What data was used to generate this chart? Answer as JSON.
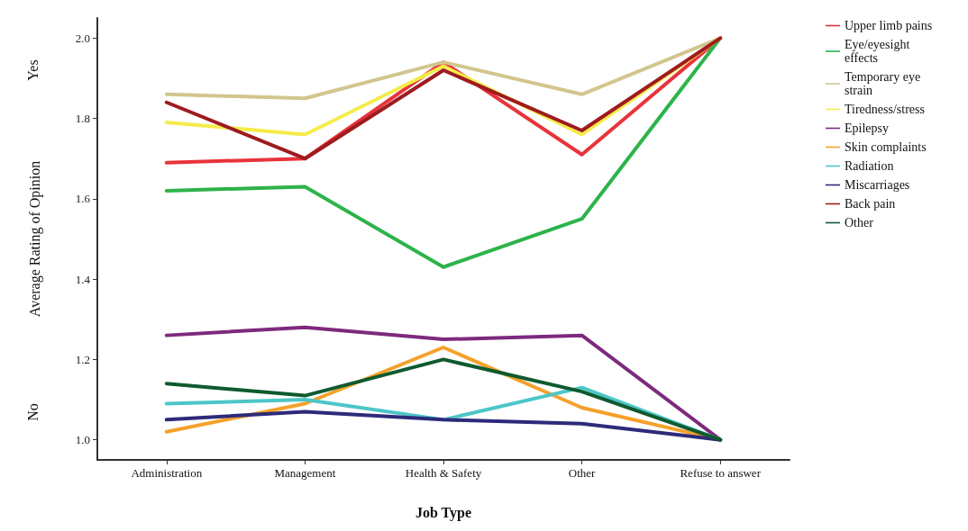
{
  "chart_data": {
    "type": "line",
    "xlabel": "Job Type",
    "ylabel": "Average Rating of Opinion",
    "categories": [
      "Administration",
      "Management",
      "Health & Safety",
      "Other",
      "Refuse to answer"
    ],
    "ylim": [
      0.95,
      2.05
    ],
    "yticks": [
      {
        "value": 1,
        "label": "1.0"
      },
      1.2,
      1.4,
      1.6,
      1.8,
      {
        "value": 2,
        "label": "2.0"
      }
    ],
    "grid": false,
    "legend": "top right",
    "marker": "none",
    "line_style": "solid",
    "annotations": [
      "Yes",
      "No"
    ],
    "series": [
      {
        "name": "Upper limb pains",
        "color": "#e8333a",
        "values": [
          1.69,
          1.7,
          1.94,
          1.71,
          2.0
        ]
      },
      {
        "name": "Eye/eyesight effects",
        "color": "#2db34a",
        "values": [
          1.62,
          1.63,
          1.43,
          1.55,
          2.0
        ]
      },
      {
        "name": "Temporary eye strain",
        "color": "#d2c68e",
        "values": [
          1.86,
          1.85,
          1.94,
          1.86,
          2.0
        ]
      },
      {
        "name": "Tiredness/stress",
        "color": "#f5ec4a",
        "values": [
          1.79,
          1.76,
          1.93,
          1.76,
          2.0
        ]
      },
      {
        "name": "Epilepsy",
        "color": "#7d2a7e",
        "values": [
          1.26,
          1.28,
          1.25,
          1.26,
          1.0
        ]
      },
      {
        "name": "Skin complaints",
        "color": "#f4a12a",
        "values": [
          1.02,
          1.09,
          1.23,
          1.08,
          1.0
        ]
      },
      {
        "name": "Radiation",
        "color": "#4cc6c8",
        "values": [
          1.09,
          1.1,
          1.05,
          1.13,
          1.0
        ]
      },
      {
        "name": "Miscarriages",
        "color": "#2e2a7a",
        "values": [
          1.05,
          1.07,
          1.05,
          1.04,
          1.0
        ]
      },
      {
        "name": "Back pain",
        "color": "#9e1b1e",
        "values": [
          1.84,
          1.7,
          1.92,
          1.77,
          2.0
        ]
      },
      {
        "name": "Other",
        "color": "#0f5a2e",
        "values": [
          1.14,
          1.11,
          1.2,
          1.12,
          1.0
        ]
      }
    ]
  }
}
